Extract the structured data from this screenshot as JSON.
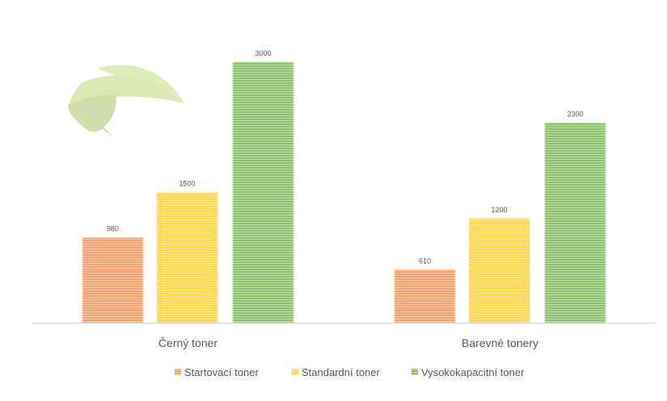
{
  "chart_data": {
    "type": "bar",
    "title": "",
    "xlabel": "",
    "ylabel": "",
    "ylim": [
      0,
      3000
    ],
    "grid": false,
    "legend_position": "bottom",
    "categories": [
      "Černý toner",
      "Barevné tonery"
    ],
    "series": [
      {
        "name": "Startovací toner",
        "values": [
          980,
          610
        ],
        "color": "#F4A06E"
      },
      {
        "name": "Standardní toner",
        "values": [
          1500,
          1200
        ],
        "color": "#FFD54A"
      },
      {
        "name": "Vysokokapacitní toner",
        "values": [
          3000,
          2300
        ],
        "color": "#8DC26A"
      }
    ],
    "bar_fill": "horizontal-stripes",
    "logo": "green-leaf"
  }
}
